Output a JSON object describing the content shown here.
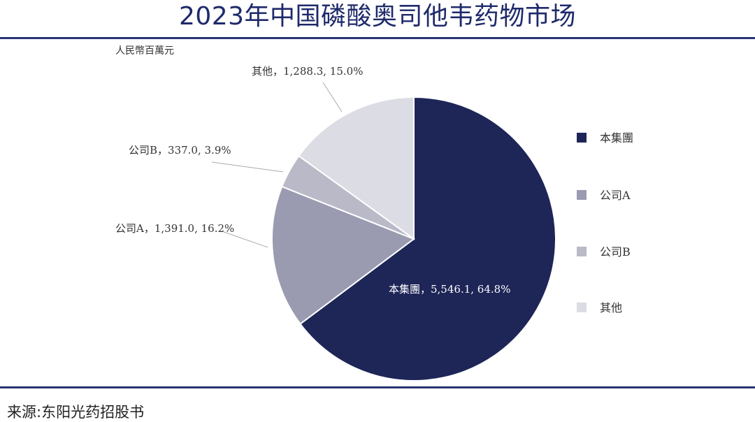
{
  "header": {
    "title": "2023年中国磷酸奥司他韦药物市场"
  },
  "footer": {
    "source": "来源:东阳光药招股书"
  },
  "chart_data": {
    "type": "pie",
    "title": "2023年中国磷酸奥司他韦药物市场",
    "unit_label": "人民幣百萬元",
    "legend_position": "right",
    "slices": [
      {
        "name": "本集團",
        "value": 5546.1,
        "percent": 64.8,
        "label": "本集團，5,546.1, 64.8%",
        "color": "#1e2557"
      },
      {
        "name": "公司A",
        "value": 1391.0,
        "percent": 16.2,
        "label": "公司A，1,391.0, 16.2%",
        "color": "#9a9bb0"
      },
      {
        "name": "公司B",
        "value": 337.0,
        "percent": 3.9,
        "label": "公司B，337.0, 3.9%",
        "color": "#b9b9c8"
      },
      {
        "name": "其他",
        "value": 1288.3,
        "percent": 15.0,
        "label": "其他，1,288.3, 15.0%",
        "color": "#dcdce4"
      }
    ]
  }
}
